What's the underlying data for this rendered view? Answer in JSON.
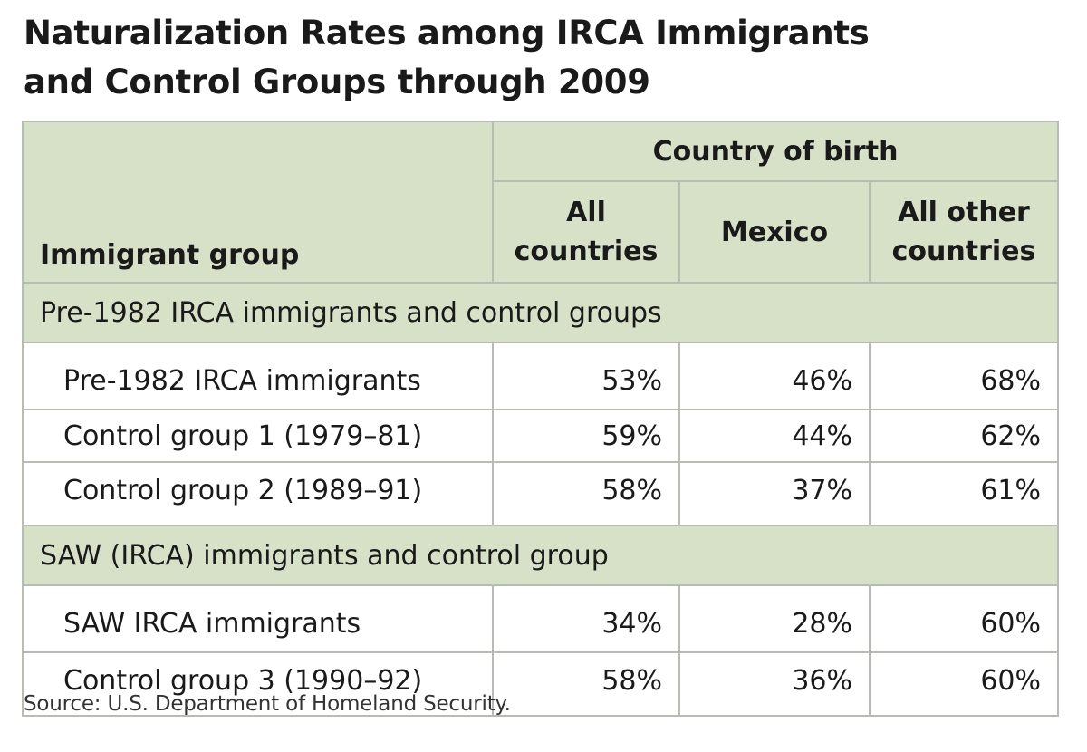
{
  "title": {
    "line1": "Naturalization Rates among IRCA Immigrants",
    "line2": "and Control Groups through 2009"
  },
  "table": {
    "group_header": "Immigrant group",
    "country_header": "Country of birth",
    "col_all": {
      "line1": "All",
      "line2": "countries"
    },
    "col_mexico": "Mexico",
    "col_other": {
      "line1": "All other",
      "line2": "countries"
    },
    "sections": [
      {
        "title": "Pre-1982 IRCA immigrants and control groups",
        "rows": [
          {
            "group": "Pre-1982 IRCA immigrants",
            "all": "53%",
            "mexico": "46%",
            "other": "68%"
          },
          {
            "group": "Control group 1 (1979–81)",
            "all": "59%",
            "mexico": "44%",
            "other": "62%"
          },
          {
            "group": "Control group 2 (1989–91)",
            "all": "58%",
            "mexico": "37%",
            "other": "61%"
          }
        ]
      },
      {
        "title": "SAW (IRCA) immigrants and control group",
        "rows": [
          {
            "group": "SAW IRCA immigrants",
            "all": "34%",
            "mexico": "28%",
            "other": "60%"
          },
          {
            "group": "Control group 3 (1990–92)",
            "all": "58%",
            "mexico": "36%",
            "other": "60%"
          }
        ]
      }
    ]
  },
  "source": "Source: U.S. Department of Homeland Security.",
  "colors": {
    "header_fill": "#d7e1c8",
    "border": "#b9bcb3",
    "text": "#1a1a1a"
  }
}
